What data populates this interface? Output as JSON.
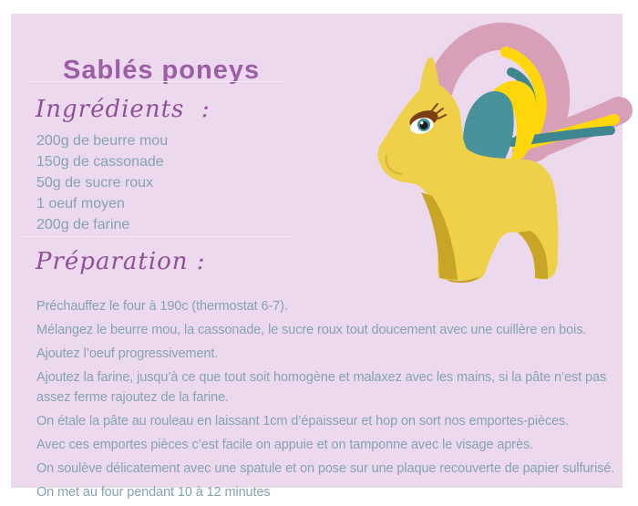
{
  "card": {
    "title": "Sablés poneys",
    "ingredients": {
      "heading": "Ingrédients  :",
      "items": [
        "200g de beurre mou",
        "150g de cassonade",
        "50g de sucre roux",
        "1 oeuf moyen",
        "200g de farine"
      ]
    },
    "preparation": {
      "heading": "Préparation :",
      "steps": [
        "Préchauffez le four à 190c (thermostat 6-7).",
        "Mélangez le beurre mou, la cassonade, le sucre roux tout doucement avec une cuillère en bois.",
        "Ajoutez l’oeuf progressivement.",
        "Ajoutez la farine, jusqu’à ce que tout soit homogène et malaxez avec les mains, si la pâte n’est pas assez ferme rajoutez de la farine.",
        "On étale la pâte au rouleau en laissant 1cm d’épaisseur et hop on sort nos emportes-pièces.",
        "Avec ces emportes pièces c’est facile on appuie et on tamponne avec le visage après.",
        "On soulève délicatement avec une spatule et on pose sur une plaque recouverte de papier sulfurisé.",
        "On met au four pendant 10 à 12 minutes"
      ]
    },
    "illustration": "yellow pony with pink, yellow and teal mane"
  },
  "colors": {
    "page_bg": "#ffffff",
    "card_bg": "#EDD9EE",
    "title": "#9C5FA5",
    "heading": "#8F5097",
    "body_text": "#85A2B1",
    "divider": "#F5E9F6",
    "pony_body": "#EED049",
    "pony_shadow": "#C8A526",
    "mane_pink": "#D8A0B8",
    "mane_yellow": "#FFD60A",
    "mane_teal": "#3E8690",
    "panel_teal": "#47929B",
    "eye_brown": "#7A4014",
    "muzzle_line": "#D9B93B"
  }
}
